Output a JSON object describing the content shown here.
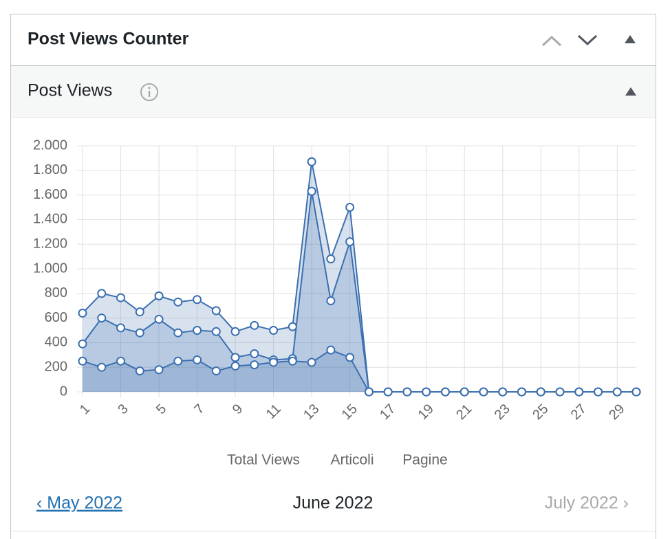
{
  "header": {
    "title": "Post Views Counter"
  },
  "section": {
    "title": "Post Views"
  },
  "chart_data": {
    "type": "line",
    "x": [
      1,
      2,
      3,
      4,
      5,
      6,
      7,
      8,
      9,
      10,
      11,
      12,
      13,
      14,
      15,
      16,
      17,
      18,
      19,
      20,
      21,
      22,
      23,
      24,
      25,
      26,
      27,
      28,
      29,
      30
    ],
    "xlim": [
      1,
      30
    ],
    "xticks": [
      1,
      3,
      5,
      7,
      9,
      11,
      13,
      15,
      17,
      19,
      21,
      23,
      25,
      27,
      29
    ],
    "ylim": [
      0,
      2000
    ],
    "yticks": [
      0,
      200,
      400,
      600,
      800,
      {
        "value": 1000,
        "label": "1.000"
      },
      {
        "value": 1200,
        "label": "1.200"
      },
      {
        "value": 1400,
        "label": "1.400"
      },
      {
        "value": 1600,
        "label": "1.600"
      },
      {
        "value": 1800,
        "label": "1.800"
      },
      {
        "value": 2000,
        "label": "2.000"
      }
    ],
    "grid": true,
    "fill": true,
    "series": [
      {
        "name": "Total Views",
        "color": "#3a6fb0",
        "values": [
          640,
          800,
          765,
          650,
          780,
          730,
          750,
          660,
          490,
          540,
          500,
          530,
          1870,
          1080,
          1500,
          0,
          0,
          0,
          0,
          0,
          0,
          0,
          0,
          0,
          0,
          0,
          0,
          0,
          0,
          0
        ]
      },
      {
        "name": "Articoli",
        "color": "#3a6fb0",
        "values": [
          390,
          600,
          520,
          480,
          590,
          480,
          500,
          490,
          280,
          310,
          260,
          270,
          1630,
          740,
          1220,
          0,
          0,
          0,
          0,
          0,
          0,
          0,
          0,
          0,
          0,
          0,
          0,
          0,
          0,
          0
        ]
      },
      {
        "name": "Pagine",
        "color": "#3a6fb0",
        "values": [
          250,
          200,
          250,
          170,
          180,
          250,
          260,
          170,
          210,
          220,
          240,
          250,
          240,
          340,
          280,
          0,
          0,
          0,
          0,
          0,
          0,
          0,
          0,
          0,
          0,
          0,
          0,
          0,
          0,
          0
        ]
      }
    ]
  },
  "nav": {
    "prev": "‹ May 2022",
    "current": "June 2022",
    "next": "July 2022 ›"
  }
}
